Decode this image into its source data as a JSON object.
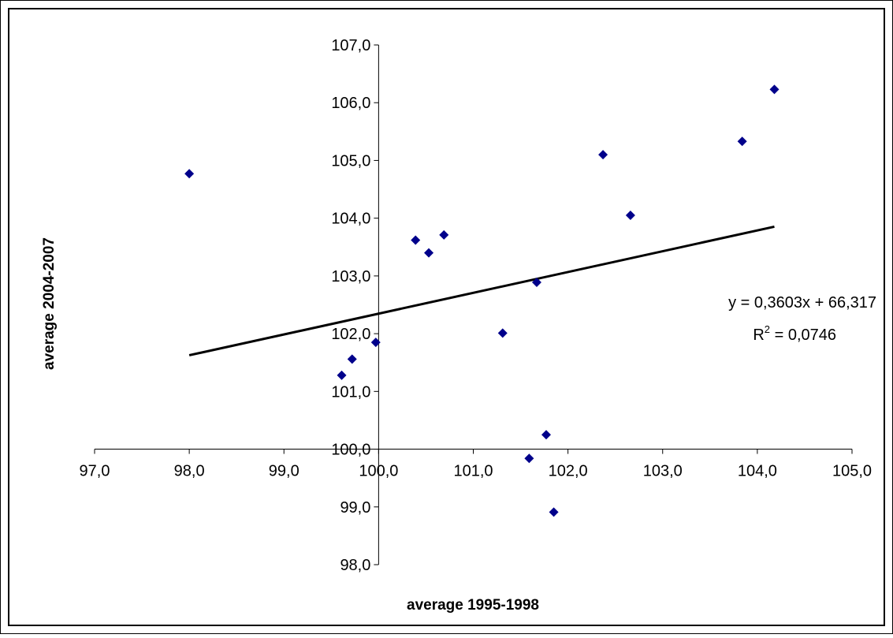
{
  "chart_data": {
    "type": "scatter",
    "xlabel": "average 1995-1998",
    "ylabel": "average 2004-2007",
    "xlim": [
      97.0,
      105.0
    ],
    "ylim": [
      98.0,
      107.0
    ],
    "x_ticks": [
      "97,0",
      "98,0",
      "99,0",
      "100,0",
      "101,0",
      "102,0",
      "103,0",
      "104,0",
      "105,0"
    ],
    "y_ticks": [
      "98,0",
      "99,0",
      "100,0",
      "101,0",
      "102,0",
      "103,0",
      "104,0",
      "105,0",
      "106,0",
      "107,0"
    ],
    "axes_cross_at": {
      "x": 100.0,
      "y": 100.0
    },
    "grid": false,
    "legend": "none",
    "marker_color": "#00008B",
    "points": [
      {
        "x": 98.0,
        "y": 104.77
      },
      {
        "x": 99.61,
        "y": 101.28
      },
      {
        "x": 99.72,
        "y": 101.56
      },
      {
        "x": 99.97,
        "y": 101.85
      },
      {
        "x": 100.39,
        "y": 103.62
      },
      {
        "x": 100.53,
        "y": 103.4
      },
      {
        "x": 100.69,
        "y": 103.71
      },
      {
        "x": 101.31,
        "y": 102.01
      },
      {
        "x": 101.59,
        "y": 99.84
      },
      {
        "x": 101.67,
        "y": 102.89
      },
      {
        "x": 101.77,
        "y": 100.25
      },
      {
        "x": 101.85,
        "y": 98.91
      },
      {
        "x": 102.37,
        "y": 105.1
      },
      {
        "x": 102.66,
        "y": 104.05
      },
      {
        "x": 103.84,
        "y": 105.33
      },
      {
        "x": 104.18,
        "y": 106.23
      }
    ],
    "trendline": {
      "type": "linear",
      "slope": 0.3603,
      "intercept": 66.317,
      "x_range": [
        98.0,
        104.18
      ],
      "color": "#000000",
      "equation_text": "y = 0,3603x + 66,317",
      "r2_prefix": "R",
      "r2_sup": "2",
      "r2_value": " = 0,0746"
    }
  }
}
